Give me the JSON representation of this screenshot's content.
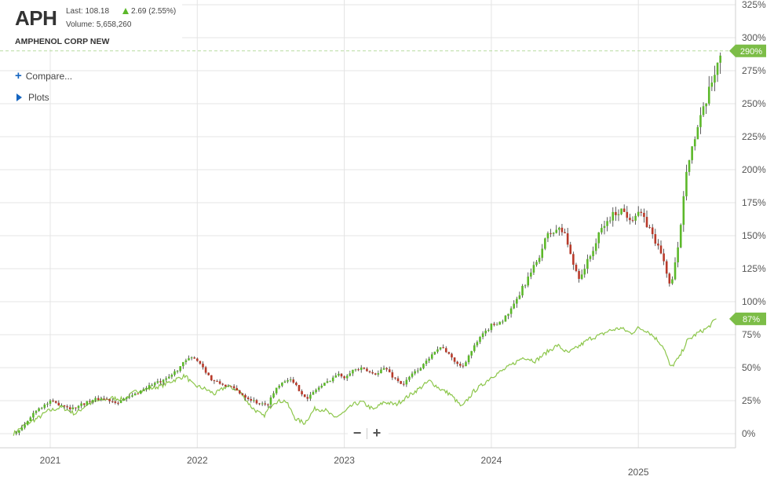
{
  "header": {
    "ticker": "APH",
    "last": "Last: 108.18",
    "change": "2.69 (2.55%)",
    "volume": "Volume: 5,658,260",
    "company": "AMPHENOL CORP NEW"
  },
  "controls": {
    "compare": "Compare...",
    "plots": "Plots",
    "zoom_out": "−",
    "zoom_in": "+"
  },
  "colors": {
    "up": "#5cb82a",
    "down": "#b83a2a",
    "benchmark": "#8cc64a",
    "grid": "#e4e4e4",
    "badge": "#7cbd47"
  },
  "chart_data": {
    "type": "line",
    "x_ticks": [
      "2021",
      "2022",
      "2023",
      "2024",
      "2025"
    ],
    "y_ticks": [
      "0%",
      "25%",
      "50%",
      "75%",
      "100%",
      "125%",
      "150%",
      "175%",
      "200%",
      "225%",
      "250%",
      "275%",
      "300%",
      "325%"
    ],
    "ylim": [
      -10,
      325
    ],
    "series": [
      {
        "style": "candlestick",
        "last_badge": "290%",
        "points": [
          [
            2020.75,
            0
          ],
          [
            2020.82,
            5
          ],
          [
            2020.9,
            18
          ],
          [
            2021.0,
            24
          ],
          [
            2021.08,
            22
          ],
          [
            2021.15,
            19
          ],
          [
            2021.25,
            24
          ],
          [
            2021.35,
            27
          ],
          [
            2021.45,
            24
          ],
          [
            2021.55,
            28
          ],
          [
            2021.62,
            33
          ],
          [
            2021.7,
            38
          ],
          [
            2021.78,
            40
          ],
          [
            2021.85,
            47
          ],
          [
            2021.92,
            55
          ],
          [
            2021.98,
            58
          ],
          [
            2022.03,
            52
          ],
          [
            2022.1,
            40
          ],
          [
            2022.18,
            37
          ],
          [
            2022.25,
            34
          ],
          [
            2022.33,
            28
          ],
          [
            2022.4,
            24
          ],
          [
            2022.47,
            21
          ],
          [
            2022.55,
            37
          ],
          [
            2022.62,
            42
          ],
          [
            2022.68,
            35
          ],
          [
            2022.75,
            26
          ],
          [
            2022.8,
            33
          ],
          [
            2022.87,
            38
          ],
          [
            2022.95,
            45
          ],
          [
            2023.0,
            43
          ],
          [
            2023.05,
            48
          ],
          [
            2023.12,
            49
          ],
          [
            2023.2,
            45
          ],
          [
            2023.28,
            50
          ],
          [
            2023.33,
            43
          ],
          [
            2023.4,
            37
          ],
          [
            2023.47,
            46
          ],
          [
            2023.55,
            53
          ],
          [
            2023.6,
            62
          ],
          [
            2023.67,
            66
          ],
          [
            2023.72,
            58
          ],
          [
            2023.8,
            50
          ],
          [
            2023.85,
            60
          ],
          [
            2023.92,
            72
          ],
          [
            2024.0,
            82
          ],
          [
            2024.08,
            86
          ],
          [
            2024.15,
            96
          ],
          [
            2024.22,
            112
          ],
          [
            2024.3,
            128
          ],
          [
            2024.38,
            150
          ],
          [
            2024.45,
            155
          ],
          [
            2024.5,
            152
          ],
          [
            2024.55,
            130
          ],
          [
            2024.6,
            118
          ],
          [
            2024.67,
            134
          ],
          [
            2024.75,
            155
          ],
          [
            2024.82,
            165
          ],
          [
            2024.88,
            170
          ],
          [
            2024.95,
            163
          ],
          [
            2025.0,
            168
          ],
          [
            2025.05,
            160
          ],
          [
            2025.1,
            150
          ],
          [
            2025.17,
            132
          ],
          [
            2025.22,
            110
          ],
          [
            2025.27,
            140
          ],
          [
            2025.33,
            205
          ],
          [
            2025.38,
            222
          ],
          [
            2025.43,
            240
          ],
          [
            2025.48,
            258
          ],
          [
            2025.52,
            275
          ],
          [
            2025.56,
            290
          ]
        ]
      },
      {
        "style": "line",
        "last_badge": "87%",
        "points": [
          [
            2020.75,
            0
          ],
          [
            2020.83,
            7
          ],
          [
            2020.92,
            12
          ],
          [
            2020.98,
            17
          ],
          [
            2021.08,
            20
          ],
          [
            2021.17,
            15
          ],
          [
            2021.25,
            22
          ],
          [
            2021.33,
            25
          ],
          [
            2021.42,
            27
          ],
          [
            2021.5,
            26
          ],
          [
            2021.58,
            32
          ],
          [
            2021.67,
            34
          ],
          [
            2021.75,
            36
          ],
          [
            2021.83,
            40
          ],
          [
            2021.92,
            44
          ],
          [
            2021.97,
            37
          ],
          [
            2022.05,
            34
          ],
          [
            2022.12,
            30
          ],
          [
            2022.2,
            36
          ],
          [
            2022.28,
            33
          ],
          [
            2022.37,
            20
          ],
          [
            2022.45,
            13
          ],
          [
            2022.52,
            24
          ],
          [
            2022.6,
            25
          ],
          [
            2022.67,
            11
          ],
          [
            2022.73,
            8
          ],
          [
            2022.8,
            19
          ],
          [
            2022.87,
            18
          ],
          [
            2022.93,
            12
          ],
          [
            2023.0,
            16
          ],
          [
            2023.06,
            22
          ],
          [
            2023.12,
            24
          ],
          [
            2023.2,
            18
          ],
          [
            2023.27,
            24
          ],
          [
            2023.35,
            22
          ],
          [
            2023.43,
            28
          ],
          [
            2023.52,
            35
          ],
          [
            2023.58,
            40
          ],
          [
            2023.65,
            34
          ],
          [
            2023.72,
            30
          ],
          [
            2023.8,
            20
          ],
          [
            2023.88,
            32
          ],
          [
            2023.95,
            38
          ],
          [
            2024.0,
            43
          ],
          [
            2024.08,
            48
          ],
          [
            2024.15,
            53
          ],
          [
            2024.22,
            58
          ],
          [
            2024.3,
            55
          ],
          [
            2024.38,
            62
          ],
          [
            2024.45,
            67
          ],
          [
            2024.52,
            61
          ],
          [
            2024.58,
            65
          ],
          [
            2024.67,
            72
          ],
          [
            2024.75,
            75
          ],
          [
            2024.8,
            78
          ],
          [
            2024.88,
            80
          ],
          [
            2024.95,
            76
          ],
          [
            2025.0,
            80
          ],
          [
            2025.06,
            78
          ],
          [
            2025.12,
            72
          ],
          [
            2025.17,
            66
          ],
          [
            2025.22,
            50
          ],
          [
            2025.28,
            58
          ],
          [
            2025.33,
            70
          ],
          [
            2025.4,
            76
          ],
          [
            2025.47,
            80
          ],
          [
            2025.53,
            87
          ]
        ]
      }
    ]
  }
}
